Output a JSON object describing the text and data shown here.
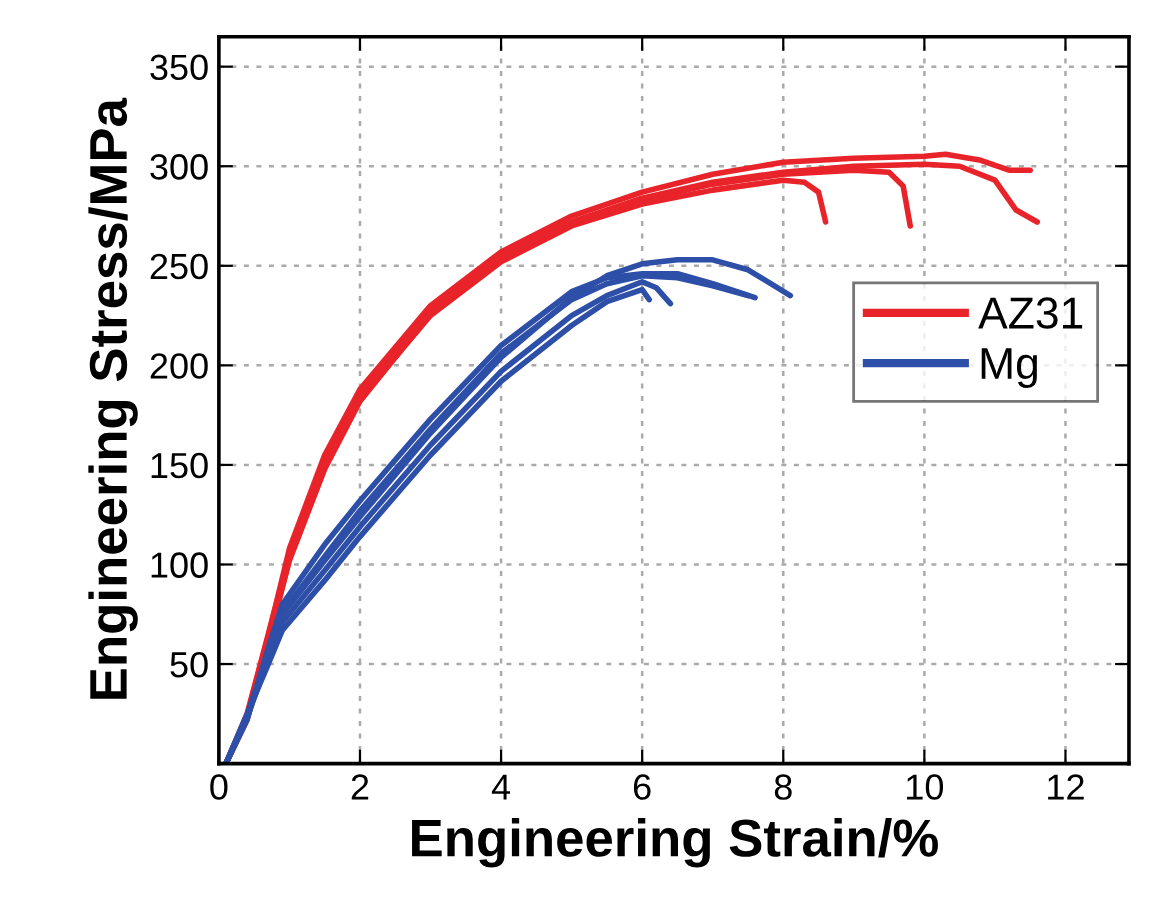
{
  "chart_data": {
    "type": "line",
    "xlabel": "Engineering Strain/%",
    "ylabel": "Engineering Stress/MPa",
    "xlim": [
      0,
      12.9
    ],
    "ylim": [
      0,
      365
    ],
    "xticks": [
      0,
      2,
      4,
      6,
      8,
      10,
      12
    ],
    "yticks": [
      50,
      100,
      150,
      200,
      250,
      300,
      350
    ],
    "grid": true,
    "legend": "right",
    "line_style": "solid",
    "marker": "none",
    "series": [
      {
        "name": "AZ31",
        "color": "#e8232a",
        "x": [
          0.1,
          0.4,
          0.7,
          1,
          1.5,
          2,
          3,
          4,
          5,
          6,
          7,
          8,
          8.3,
          8.5,
          8.6
        ],
        "values": [
          0,
          25,
          65,
          105,
          150,
          183,
          225,
          252,
          270,
          281,
          288,
          293,
          292,
          287,
          272
        ]
      },
      {
        "color": "#e8232a",
        "x": [
          0.1,
          0.4,
          0.7,
          1,
          1.5,
          2,
          3,
          4,
          5,
          6,
          7,
          8,
          9,
          9.5,
          9.7,
          9.8
        ],
        "values": [
          0,
          22,
          62,
          102,
          148,
          182,
          226,
          254,
          272,
          283,
          291,
          296,
          298,
          297,
          290,
          270
        ]
      },
      {
        "color": "#e8232a",
        "x": [
          0.1,
          0.4,
          0.7,
          1,
          1.5,
          2,
          3,
          4,
          5,
          6,
          7,
          8,
          9,
          10,
          10.3,
          10.8,
          11.2,
          11.5
        ],
        "values": [
          0,
          24,
          64,
          108,
          155,
          188,
          230,
          257,
          275,
          287,
          296,
          302,
          304,
          305,
          306,
          303,
          298,
          298
        ]
      },
      {
        "color": "#e8232a",
        "x": [
          0.1,
          0.4,
          0.7,
          1,
          1.5,
          2,
          3,
          4,
          5,
          6,
          7,
          8,
          9,
          10,
          10.5,
          11,
          11.3,
          11.6
        ],
        "values": [
          0,
          23,
          60,
          103,
          150,
          184,
          227,
          255,
          272,
          284,
          292,
          297,
          300,
          301,
          300,
          293,
          278,
          272
        ]
      },
      {
        "name": "Mg",
        "color": "#2e4fa8",
        "x": [
          0.1,
          0.4,
          0.7,
          0.9,
          1.5,
          2,
          3,
          4,
          5,
          5.5,
          6,
          6.1
        ],
        "values": [
          0,
          25,
          50,
          67,
          92,
          114,
          155,
          192,
          220,
          232,
          238,
          233
        ]
      },
      {
        "color": "#2e4fa8",
        "x": [
          0.1,
          0.4,
          0.7,
          0.9,
          1.5,
          2,
          3,
          4,
          5,
          5.5,
          6,
          6.2,
          6.4
        ],
        "values": [
          0,
          23,
          53,
          71,
          97,
          119,
          160,
          197,
          225,
          235,
          242,
          239,
          231
        ]
      },
      {
        "color": "#2e4fa8",
        "x": [
          0.1,
          0.4,
          0.7,
          0.9,
          1.5,
          2,
          3,
          4,
          5,
          5.5,
          6,
          6.5,
          7,
          7.5
        ],
        "values": [
          0,
          24,
          56,
          76,
          104,
          127,
          168,
          206,
          233,
          241,
          245,
          244,
          240,
          235
        ]
      },
      {
        "color": "#2e4fa8",
        "x": [
          0.1,
          0.4,
          0.7,
          0.9,
          1.5,
          2,
          3,
          4,
          5,
          5.5,
          6,
          6.5,
          7,
          7.6
        ],
        "values": [
          0,
          22,
          58,
          80,
          110,
          132,
          173,
          210,
          237,
          244,
          246,
          246,
          241,
          234
        ]
      },
      {
        "color": "#2e4fa8",
        "x": [
          0.1,
          0.4,
          0.7,
          0.9,
          1.5,
          2,
          3,
          4,
          5,
          5.5,
          6,
          6.5,
          7,
          7.5,
          8.1
        ],
        "values": [
          0,
          24,
          56,
          75,
          102,
          124,
          166,
          204,
          234,
          245,
          251,
          253,
          253,
          248,
          235
        ]
      }
    ]
  }
}
